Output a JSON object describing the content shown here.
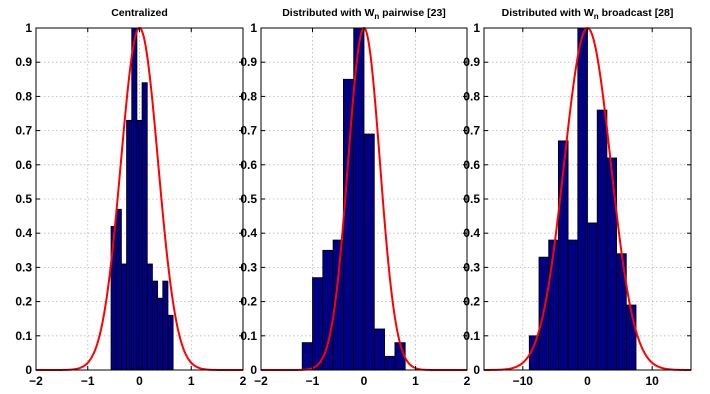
{
  "chart_data": [
    {
      "type": "bar",
      "title": "Centralized",
      "xlabel": "",
      "ylabel": "",
      "xlim": [
        -2,
        2
      ],
      "ylim": [
        0,
        1
      ],
      "xticks": [
        -2,
        -1,
        0,
        1,
        2
      ],
      "yticks": [
        0,
        0.1,
        0.2,
        0.3,
        0.4,
        0.5,
        0.6,
        0.7,
        0.8,
        0.9,
        1
      ],
      "grid": true,
      "colors": {
        "bars": "#000080",
        "curve": "#ff0000"
      },
      "bars": {
        "width": 0.1,
        "x": [
          -0.5,
          -0.4,
          -0.3,
          -0.2,
          -0.1,
          0.0,
          0.1,
          0.2,
          0.3,
          0.4,
          0.5,
          0.6
        ],
        "values": [
          0.42,
          0.47,
          0.31,
          0.73,
          1.0,
          0.73,
          0.84,
          0.31,
          0.26,
          0.21,
          0.26,
          0.16
        ]
      },
      "curve": {
        "shape": "gaussian",
        "mean": 0,
        "sigma": 0.36,
        "peak": 1.0
      }
    },
    {
      "type": "bar",
      "title_main": "Distributed with W",
      "title_sub": "n",
      "title_rest": " pairwise [23]",
      "xlabel": "",
      "ylabel": "",
      "xlim": [
        -2,
        2
      ],
      "ylim": [
        0,
        1
      ],
      "xticks": [
        -2,
        -1,
        0,
        1,
        2
      ],
      "yticks": [
        0,
        0.1,
        0.2,
        0.3,
        0.4,
        0.5,
        0.6,
        0.7,
        0.8,
        0.9,
        1
      ],
      "grid": true,
      "colors": {
        "bars": "#000080",
        "curve": "#ff0000"
      },
      "bars": {
        "width": 0.2,
        "x": [
          -1.1,
          -0.9,
          -0.7,
          -0.5,
          -0.3,
          -0.1,
          0.1,
          0.3,
          0.5,
          0.7,
          0.9,
          1.1
        ],
        "values": [
          0.08,
          0.27,
          0.35,
          0.38,
          0.85,
          1.0,
          0.69,
          0.12,
          0.04,
          0.08,
          0.0,
          0.0
        ]
      },
      "curve": {
        "shape": "gaussian",
        "mean": 0,
        "sigma": 0.31,
        "peak": 1.0
      }
    },
    {
      "type": "bar",
      "title_main": "Distributed with W",
      "title_sub": "n",
      "title_rest": " broadcast [28]",
      "xlabel": "",
      "ylabel": "",
      "xlim": [
        -16,
        16
      ],
      "ylim": [
        0,
        1
      ],
      "xticks": [
        -10,
        0,
        10
      ],
      "yticks": [
        0,
        0.1,
        0.2,
        0.3,
        0.4,
        0.5,
        0.6,
        0.7,
        0.8,
        0.9,
        1
      ],
      "grid": true,
      "colors": {
        "bars": "#000080",
        "curve": "#ff0000"
      },
      "bars": {
        "width": 1.5,
        "x": [
          -8.25,
          -6.75,
          -5.25,
          -3.75,
          -2.25,
          -0.75,
          0.75,
          2.25,
          3.75,
          5.25,
          6.75,
          8.25
        ],
        "values": [
          0.1,
          0.33,
          0.38,
          0.67,
          0.38,
          1.0,
          0.43,
          0.76,
          0.62,
          0.34,
          0.19,
          0.0
        ]
      },
      "curve": {
        "shape": "gaussian",
        "mean": 0,
        "sigma": 3.6,
        "peak": 1.0
      }
    }
  ]
}
